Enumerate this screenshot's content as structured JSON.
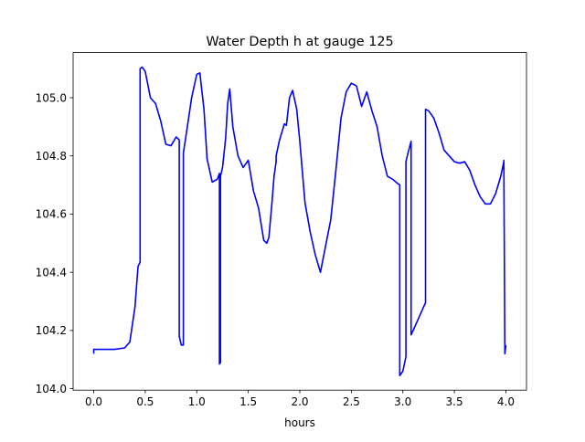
{
  "chart_data": {
    "type": "line",
    "title": "Water Depth h at gauge 125",
    "xlabel": "hours",
    "ylabel": "",
    "xlim": [
      -0.2,
      4.2
    ],
    "ylim": [
      103.995,
      105.155
    ],
    "xticks": [
      0.0,
      0.5,
      1.0,
      1.5,
      2.0,
      2.5,
      3.0,
      3.5,
      4.0
    ],
    "xtick_labels": [
      "0.0",
      "0.5",
      "1.0",
      "1.5",
      "2.0",
      "2.5",
      "3.0",
      "3.5",
      "4.0"
    ],
    "yticks": [
      104.0,
      104.2,
      104.4,
      104.6,
      104.8,
      105.0
    ],
    "ytick_labels": [
      "104.0",
      "104.2",
      "104.4",
      "104.6",
      "104.8",
      "105.0"
    ],
    "grid": false,
    "legend": "none",
    "series": [
      {
        "color": "#0000ff",
        "x": [
          0.0,
          0.0,
          0.2,
          0.3,
          0.35,
          0.4,
          0.43,
          0.45,
          0.45,
          0.47,
          0.5,
          0.55,
          0.6,
          0.65,
          0.7,
          0.75,
          0.8,
          0.83,
          0.83,
          0.85,
          0.87,
          0.87,
          0.9,
          0.95,
          1.0,
          1.03,
          1.07,
          1.1,
          1.15,
          1.2,
          1.22,
          1.22,
          1.23,
          1.23,
          1.25,
          1.28,
          1.3,
          1.32,
          1.35,
          1.4,
          1.45,
          1.5,
          1.55,
          1.6,
          1.65,
          1.68,
          1.7,
          1.73,
          1.75,
          1.77,
          1.77,
          1.8,
          1.85,
          1.87,
          1.9,
          1.93,
          1.97,
          2.0,
          2.05,
          2.1,
          2.15,
          2.2,
          2.3,
          2.35,
          2.4,
          2.45,
          2.5,
          2.55,
          2.6,
          2.65,
          2.7,
          2.75,
          2.8,
          2.85,
          2.9,
          2.95,
          2.97,
          2.97,
          3.0,
          3.03,
          3.03,
          3.05,
          3.08,
          3.08,
          3.1,
          3.15,
          3.2,
          3.22,
          3.22,
          3.25,
          3.3,
          3.35,
          3.4,
          3.45,
          3.5,
          3.55,
          3.6,
          3.65,
          3.7,
          3.75,
          3.8,
          3.85,
          3.9,
          3.95,
          3.98,
          3.98,
          3.99,
          4.0
        ],
        "y": [
          104.12,
          104.135,
          104.135,
          104.14,
          104.16,
          104.28,
          104.42,
          104.435,
          105.1,
          105.105,
          105.09,
          105.0,
          104.98,
          104.92,
          104.84,
          104.835,
          104.865,
          104.855,
          104.18,
          104.15,
          104.15,
          104.81,
          104.88,
          105.0,
          105.08,
          105.085,
          104.96,
          104.79,
          104.71,
          104.72,
          104.74,
          104.085,
          104.09,
          104.73,
          104.76,
          104.86,
          104.98,
          105.03,
          104.9,
          104.8,
          104.76,
          104.785,
          104.68,
          104.62,
          104.51,
          104.5,
          104.52,
          104.64,
          104.73,
          104.78,
          104.8,
          104.85,
          104.91,
          104.905,
          105.0,
          105.025,
          104.96,
          104.85,
          104.64,
          104.54,
          104.46,
          104.4,
          104.58,
          104.75,
          104.93,
          105.02,
          105.05,
          105.04,
          104.97,
          105.02,
          104.955,
          104.9,
          104.8,
          104.73,
          104.72,
          104.705,
          104.7,
          104.045,
          104.06,
          104.11,
          104.78,
          104.81,
          104.85,
          104.185,
          104.2,
          104.24,
          104.28,
          104.295,
          104.96,
          104.955,
          104.93,
          104.88,
          104.82,
          104.8,
          104.78,
          104.775,
          104.78,
          104.75,
          104.7,
          104.66,
          104.635,
          104.635,
          104.67,
          104.73,
          104.78,
          104.785,
          104.12,
          104.15
        ]
      }
    ]
  }
}
